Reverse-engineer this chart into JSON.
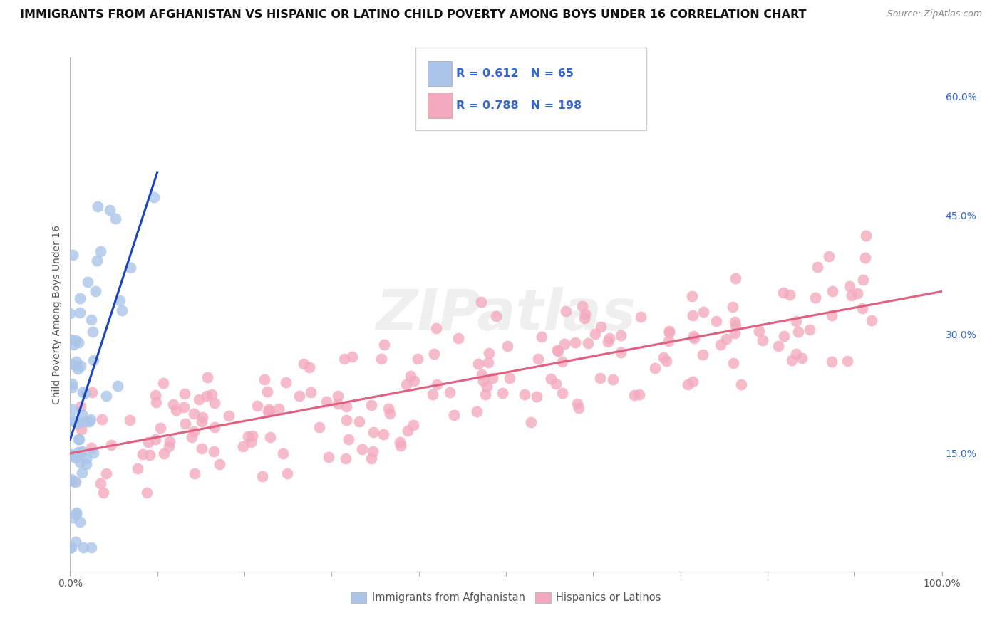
{
  "title": "IMMIGRANTS FROM AFGHANISTAN VS HISPANIC OR LATINO CHILD POVERTY AMONG BOYS UNDER 16 CORRELATION CHART",
  "source": "Source: ZipAtlas.com",
  "ylabel": "Child Poverty Among Boys Under 16",
  "xlim": [
    0,
    1.0
  ],
  "ylim": [
    0,
    0.65
  ],
  "y_ticks": [
    0.15,
    0.3,
    0.45,
    0.6
  ],
  "y_tick_labels": [
    "15.0%",
    "30.0%",
    "45.0%",
    "60.0%"
  ],
  "blue_R": 0.612,
  "blue_N": 65,
  "pink_R": 0.788,
  "pink_N": 198,
  "blue_color": "#aac5e8",
  "pink_color": "#f4aabe",
  "blue_line_color": "#1a44bb",
  "pink_line_color": "#e06080",
  "legend_text_color": "#3366cc",
  "watermark_color": "#cccccc",
  "background_color": "#ffffff",
  "grid_color": "#dddddd",
  "title_fontsize": 11.5,
  "label_fontsize": 10,
  "tick_fontsize": 10,
  "source_fontsize": 9,
  "seed": 12
}
